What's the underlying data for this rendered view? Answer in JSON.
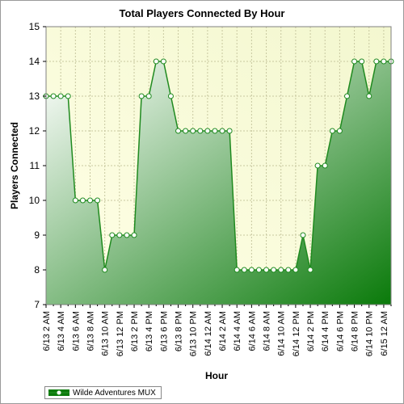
{
  "chart_data": {
    "type": "area",
    "title": "Total Players Connected By Hour",
    "xlabel": "Hour",
    "ylabel": "Players Connected",
    "ylim": [
      7,
      15
    ],
    "yticks": [
      7,
      8,
      9,
      10,
      11,
      12,
      13,
      14,
      15
    ],
    "x": [
      "6/13 2 AM",
      "6/13 3 AM",
      "6/13 4 AM",
      "6/13 5 AM",
      "6/13 6 AM",
      "6/13 7 AM",
      "6/13 8 AM",
      "6/13 9 AM",
      "6/13 10 AM",
      "6/13 11 AM",
      "6/13 12 PM",
      "6/13 1 PM",
      "6/13 2 PM",
      "6/13 3 PM",
      "6/13 4 PM",
      "6/13 5 PM",
      "6/13 6 PM",
      "6/13 7 PM",
      "6/13 8 PM",
      "6/13 9 PM",
      "6/13 10 PM",
      "6/13 11 PM",
      "6/14 12 AM",
      "6/14 1 AM",
      "6/14 2 AM",
      "6/14 3 AM",
      "6/14 4 AM",
      "6/14 5 AM",
      "6/14 6 AM",
      "6/14 7 AM",
      "6/14 8 AM",
      "6/14 9 AM",
      "6/14 10 AM",
      "6/14 11 AM",
      "6/14 12 PM",
      "6/14 1 PM",
      "6/14 2 PM",
      "6/14 3 PM",
      "6/14 4 PM",
      "6/14 5 PM",
      "6/14 6 PM",
      "6/14 7 PM",
      "6/14 8 PM",
      "6/14 9 PM",
      "6/14 10 PM",
      "6/14 11 PM",
      "6/15 12 AM",
      "6/15 1 AM"
    ],
    "tick_labels": [
      "6/13 2 AM",
      "6/13 4 AM",
      "6/13 6 AM",
      "6/13 8 AM",
      "6/13 10 AM",
      "6/13 12 PM",
      "6/13 2 PM",
      "6/13 4 PM",
      "6/13 6 PM",
      "6/13 8 PM",
      "6/13 10 PM",
      "6/14 12 AM",
      "6/14 2 AM",
      "6/14 4 AM",
      "6/14 6 AM",
      "6/14 8 AM",
      "6/14 10 AM",
      "6/14 12 PM",
      "6/14 2 PM",
      "6/14 4 PM",
      "6/14 6 PM",
      "6/14 8 PM",
      "6/14 10 PM",
      "6/15 12 AM"
    ],
    "series": [
      {
        "name": "Wilde Adventures MUX",
        "values": [
          13,
          13,
          13,
          13,
          10,
          10,
          10,
          10,
          8,
          9,
          9,
          9,
          9,
          13,
          13,
          14,
          14,
          13,
          12,
          12,
          12,
          12,
          12,
          12,
          12,
          12,
          8,
          8,
          8,
          8,
          8,
          8,
          8,
          8,
          8,
          9,
          8,
          11,
          11,
          12,
          12,
          13,
          14,
          14,
          13,
          14,
          14,
          14
        ]
      }
    ],
    "grid": true,
    "legend_position": "bottom-left",
    "colors": {
      "line": "#1f8a1f",
      "area_dark": "#0a7a0a",
      "area_light": "#ffffff",
      "plot_bg_light": "#ffffe6",
      "plot_bg_dark": "#f3f7cf",
      "grid": "#c8c8a0"
    }
  }
}
